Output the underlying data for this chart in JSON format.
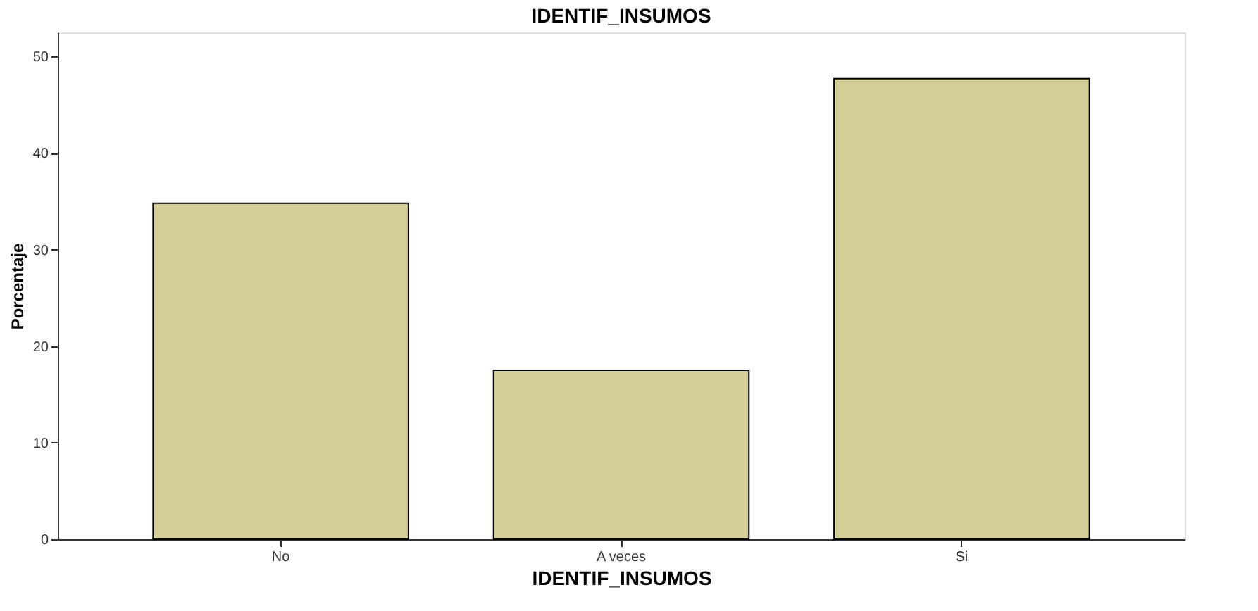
{
  "chart_data": {
    "type": "bar",
    "title": "IDENTIF_INSUMOS",
    "xlabel": "IDENTIF_INSUMOS",
    "ylabel": "Porcentaje",
    "categories": [
      "No",
      "A veces",
      "Si"
    ],
    "values": [
      34.8,
      17.5,
      47.7
    ],
    "color": "#d3ce97",
    "ylim": [
      0,
      52.5
    ],
    "yticks": [
      0,
      10,
      20,
      30,
      40,
      50
    ],
    "grid": false
  }
}
